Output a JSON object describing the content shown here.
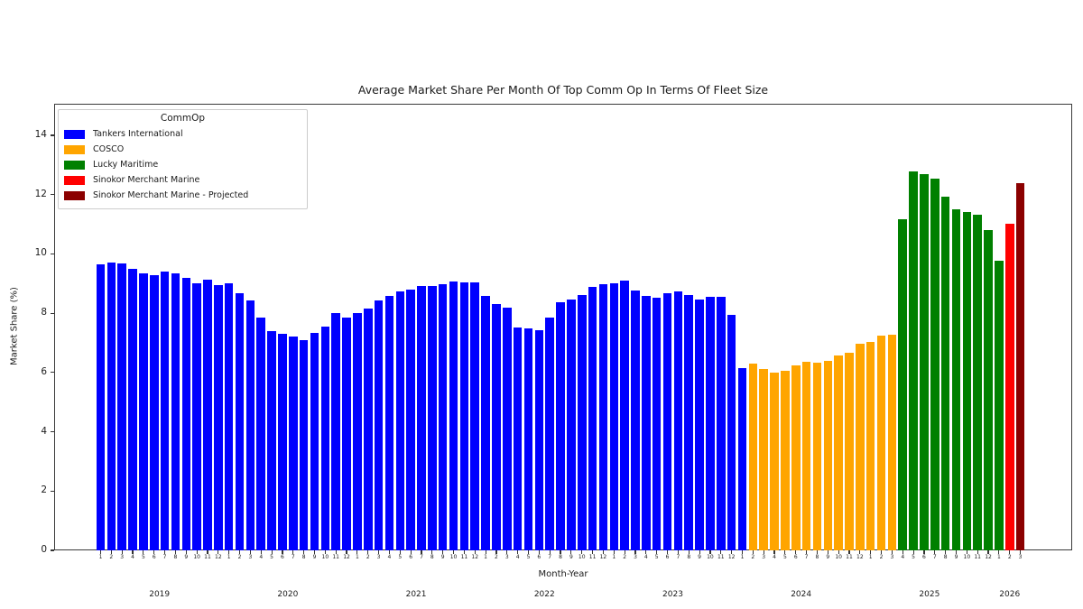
{
  "chart_data": {
    "type": "bar",
    "title": "Average Market Share Per Month Of Top Comm Op In Terms Of Fleet Size",
    "xlabel": "Month-Year",
    "ylabel": "Market Share (%)",
    "ylim": [
      0,
      15.07
    ],
    "yticks": [
      0,
      2,
      4,
      6,
      8,
      10,
      12,
      14
    ],
    "grid": false,
    "legend": {
      "title": "CommOp",
      "position": "upper-left",
      "entries": [
        {
          "label": "Tankers International",
          "color": "blue"
        },
        {
          "label": "COSCO",
          "color": "orange"
        },
        {
          "label": "Lucky Maritime",
          "color": "green"
        },
        {
          "label": "Sinokor Merchant Marine",
          "color": "red"
        },
        {
          "label": "Sinokor Merchant Marine - Projected",
          "color": "darkred"
        }
      ]
    },
    "palette": {
      "blue": "#0000ff",
      "orange": "#ffa500",
      "green": "#008000",
      "red": "#ff0000",
      "darkred": "#8b0000"
    },
    "years": [
      {
        "label": "2019",
        "values": [
          9.66,
          9.71,
          9.69,
          9.49,
          9.33,
          9.28,
          9.41,
          9.33,
          9.18,
          9.0,
          9.13,
          8.95
        ],
        "colors": "blue"
      },
      {
        "label": "2020",
        "values": [
          9.0,
          8.67,
          8.42,
          7.86,
          7.39,
          7.3,
          7.22,
          7.1,
          7.33,
          7.56,
          8.01,
          7.86
        ],
        "colors": "blue"
      },
      {
        "label": "2021",
        "values": [
          7.99,
          8.15,
          8.42,
          8.57,
          8.72,
          8.8,
          8.91,
          8.91,
          8.98,
          9.08,
          9.03,
          9.05
        ],
        "colors": "blue"
      },
      {
        "label": "2022",
        "values": [
          8.57,
          8.3,
          8.2,
          7.51,
          7.48,
          7.43,
          7.86,
          8.37,
          8.47,
          8.6,
          8.88,
          8.98
        ],
        "colors": "blue"
      },
      {
        "label": "2023",
        "values": [
          9.01,
          9.1,
          8.77,
          8.57,
          8.52,
          8.67,
          8.74,
          8.62,
          8.45,
          8.54,
          8.54,
          7.94
        ],
        "colors": "blue"
      },
      {
        "label": "2024",
        "values": [
          6.14,
          6.29,
          6.12,
          5.99,
          6.06,
          6.24,
          6.36,
          6.32,
          6.39,
          6.56,
          6.66,
          6.97
        ],
        "colors": [
          "blue",
          "orange",
          "orange",
          "orange",
          "orange",
          "orange",
          "orange",
          "orange",
          "orange",
          "orange",
          "orange",
          "orange"
        ]
      },
      {
        "label": "2025",
        "values": [
          7.02,
          7.24,
          7.27,
          11.18,
          12.79,
          12.68,
          12.55,
          11.94,
          11.49,
          11.41,
          11.31,
          10.8
        ],
        "colors": [
          "orange",
          "orange",
          "orange",
          "green",
          "green",
          "green",
          "green",
          "green",
          "green",
          "green",
          "green",
          "green"
        ]
      },
      {
        "label": "2026",
        "values": [
          9.76,
          11.01,
          12.4
        ],
        "colors": [
          "green",
          "red",
          "darkred"
        ]
      }
    ]
  }
}
